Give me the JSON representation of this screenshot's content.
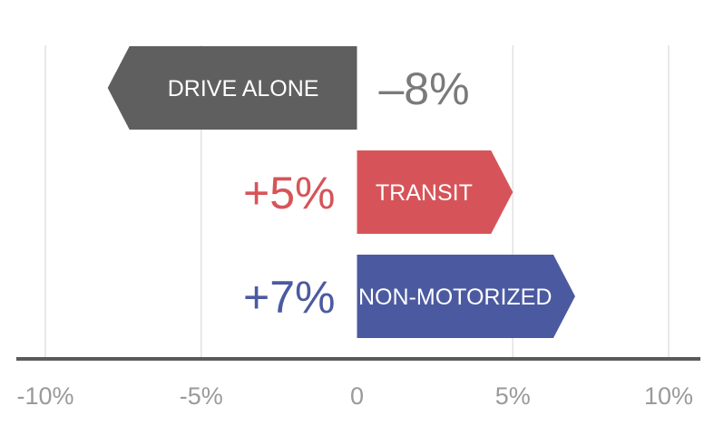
{
  "chart_data": {
    "type": "bar",
    "orientation": "horizontal",
    "xlim": [
      -10,
      10
    ],
    "x_ticks": [
      {
        "value": -10,
        "label": "-10%"
      },
      {
        "value": -5,
        "label": "-5%"
      },
      {
        "value": 0,
        "label": "0"
      },
      {
        "value": 5,
        "label": "5%"
      },
      {
        "value": 10,
        "label": "10%"
      }
    ],
    "grid": true,
    "bars": [
      {
        "category": "DRIVE ALONE",
        "value": -8,
        "value_label": "–8%",
        "color": "#5f5f5f",
        "value_color": "#7a7a7a"
      },
      {
        "category": "TRANSIT",
        "value": 5,
        "value_label": "+5%",
        "color": "#d65459",
        "value_color": "#d65459"
      },
      {
        "category": "NON-MOTORIZED",
        "value": 7,
        "value_label": "+7%",
        "color": "#4b5aa0",
        "value_color": "#4b5aa0"
      }
    ],
    "colors": {
      "axis": "#5a5a5a",
      "grid": "#e2e2e2",
      "tick_text": "#9a9a9a",
      "bar_text": "#ffffff"
    }
  }
}
